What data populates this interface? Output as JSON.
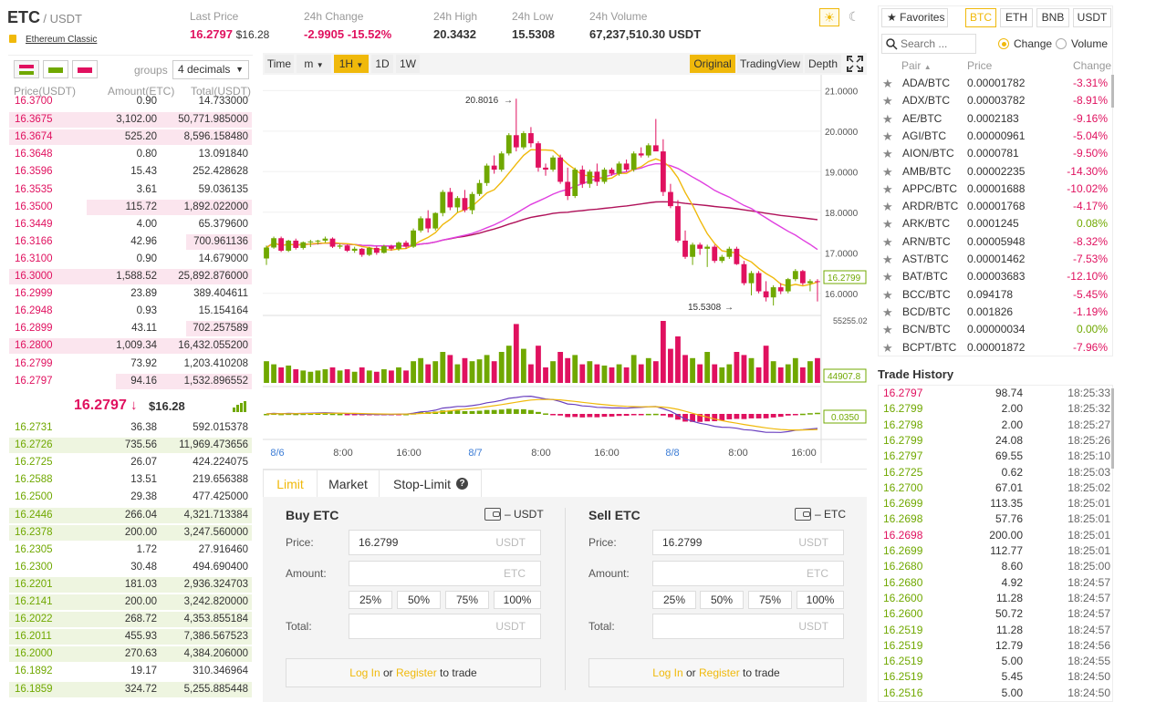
{
  "header": {
    "base": "ETC",
    "quote": "/ USDT",
    "name": "Ethereum Classic",
    "last_price_label": "Last Price",
    "last_price": "16.2797",
    "last_price_usd": "$16.28",
    "change_label": "24h Change",
    "change_abs": "-2.9905",
    "change_pct": "-15.52%",
    "high_label": "24h High",
    "high": "20.3432",
    "low_label": "24h Low",
    "low": "15.5308",
    "volume_label": "24h Volume",
    "volume": "67,237,510.30 USDT"
  },
  "orderbook": {
    "groups_label": "groups",
    "groups_value": "4 decimals",
    "col_price": "Price(USDT)",
    "col_amount": "Amount(ETC)",
    "col_total": "Total(USDT)",
    "asks": [
      {
        "p": "16.3700",
        "a": "0.90",
        "t": "14.733000",
        "depth": 0.0
      },
      {
        "p": "16.3675",
        "a": "3,102.00",
        "t": "50,771.985000",
        "depth": 1.0
      },
      {
        "p": "16.3674",
        "a": "525.20",
        "t": "8,596.158480",
        "depth": 1.0
      },
      {
        "p": "16.3648",
        "a": "0.80",
        "t": "13.091840",
        "depth": 0.0
      },
      {
        "p": "16.3596",
        "a": "15.43",
        "t": "252.428628",
        "depth": 0.0
      },
      {
        "p": "16.3535",
        "a": "3.61",
        "t": "59.036135",
        "depth": 0.0
      },
      {
        "p": "16.3500",
        "a": "115.72",
        "t": "1,892.022000",
        "depth": 0.68
      },
      {
        "p": "16.3449",
        "a": "4.00",
        "t": "65.379600",
        "depth": 0.0
      },
      {
        "p": "16.3166",
        "a": "42.96",
        "t": "700.961136",
        "depth": 0.27
      },
      {
        "p": "16.3100",
        "a": "0.90",
        "t": "14.679000",
        "depth": 0.0
      },
      {
        "p": "16.3000",
        "a": "1,588.52",
        "t": "25,892.876000",
        "depth": 1.0
      },
      {
        "p": "16.2999",
        "a": "23.89",
        "t": "389.404611",
        "depth": 0.0
      },
      {
        "p": "16.2948",
        "a": "0.93",
        "t": "15.154164",
        "depth": 0.0
      },
      {
        "p": "16.2899",
        "a": "43.11",
        "t": "702.257589",
        "depth": 0.27
      },
      {
        "p": "16.2800",
        "a": "1,009.34",
        "t": "16,432.055200",
        "depth": 1.0
      },
      {
        "p": "16.2799",
        "a": "73.92",
        "t": "1,203.410208",
        "depth": 0.0
      },
      {
        "p": "16.2797",
        "a": "94.16",
        "t": "1,532.896552",
        "depth": 0.56
      }
    ],
    "mid_price": "16.2797",
    "mid_arrow": "↓",
    "mid_usd": "$16.28",
    "bids": [
      {
        "p": "16.2731",
        "a": "36.38",
        "t": "592.015378",
        "depth": 0.0
      },
      {
        "p": "16.2726",
        "a": "735.56",
        "t": "11,969.473656",
        "depth": 1.0
      },
      {
        "p": "16.2725",
        "a": "26.07",
        "t": "424.224075",
        "depth": 0.0
      },
      {
        "p": "16.2588",
        "a": "13.51",
        "t": "219.656388",
        "depth": 0.0
      },
      {
        "p": "16.2500",
        "a": "29.38",
        "t": "477.425000",
        "depth": 0.0
      },
      {
        "p": "16.2446",
        "a": "266.04",
        "t": "4,321.713384",
        "depth": 1.0
      },
      {
        "p": "16.2378",
        "a": "200.00",
        "t": "3,247.560000",
        "depth": 1.0
      },
      {
        "p": "16.2305",
        "a": "1.72",
        "t": "27.916460",
        "depth": 0.0
      },
      {
        "p": "16.2300",
        "a": "30.48",
        "t": "494.690400",
        "depth": 0.0
      },
      {
        "p": "16.2201",
        "a": "181.03",
        "t": "2,936.324703",
        "depth": 1.0
      },
      {
        "p": "16.2141",
        "a": "200.00",
        "t": "3,242.820000",
        "depth": 1.0
      },
      {
        "p": "16.2022",
        "a": "268.72",
        "t": "4,353.855184",
        "depth": 1.0
      },
      {
        "p": "16.2011",
        "a": "455.93",
        "t": "7,386.567523",
        "depth": 1.0
      },
      {
        "p": "16.2000",
        "a": "270.63",
        "t": "4,384.206000",
        "depth": 1.0
      },
      {
        "p": "16.1892",
        "a": "19.17",
        "t": "310.346964",
        "depth": 0.0
      },
      {
        "p": "16.1859",
        "a": "324.72",
        "t": "5,255.885448",
        "depth": 1.0
      }
    ]
  },
  "chart": {
    "intervals": [
      "Time",
      "m",
      "1H",
      "1D",
      "1W"
    ],
    "active_interval": "1H",
    "views": [
      "Original",
      "TradingView",
      "Depth"
    ],
    "active_view": "Original",
    "price_ticks": [
      "21.0000",
      "20.0000",
      "19.0000",
      "18.0000",
      "17.0000",
      "16.0000"
    ],
    "current_price_tag": "16.2799",
    "high_marker": "20.8016",
    "low_marker": "15.5308",
    "vol_top": "55255.025",
    "vol_tag": "44907.8",
    "macd_tag": "0.0350",
    "time_labels": [
      {
        "t": "8/6",
        "blue": true
      },
      {
        "t": "8:00",
        "blue": false
      },
      {
        "t": "16:00",
        "blue": false
      },
      {
        "t": "8/7",
        "blue": true
      },
      {
        "t": "8:00",
        "blue": false
      },
      {
        "t": "16:00",
        "blue": false
      },
      {
        "t": "8/8",
        "blue": true
      },
      {
        "t": "8:00",
        "blue": false
      },
      {
        "t": "16:00",
        "blue": false
      }
    ],
    "colors": {
      "up": "#70a800",
      "down": "#e0115f",
      "ma_fast": "#f0b90b",
      "ma_mid": "#e040e0",
      "ma_slow": "#b0125a"
    }
  },
  "chart_data": {
    "type": "candlestick",
    "interval": "1H",
    "ylim": [
      15.5,
      21.3
    ],
    "candles": [
      [
        16.86,
        17.18,
        16.7,
        17.13
      ],
      [
        17.13,
        17.4,
        17.1,
        17.36
      ],
      [
        17.36,
        17.4,
        17.02,
        17.05
      ],
      [
        17.05,
        17.32,
        17.02,
        17.3
      ],
      [
        17.3,
        17.35,
        17.08,
        17.12
      ],
      [
        17.12,
        17.28,
        17.08,
        17.26
      ],
      [
        17.26,
        17.32,
        17.14,
        17.28
      ],
      [
        17.28,
        17.32,
        17.2,
        17.3
      ],
      [
        17.3,
        17.4,
        17.25,
        17.35
      ],
      [
        17.35,
        17.38,
        17.12,
        17.15
      ],
      [
        17.15,
        17.22,
        17.1,
        17.18
      ],
      [
        17.18,
        17.2,
        17.02,
        17.05
      ],
      [
        17.05,
        17.15,
        17.0,
        17.1
      ],
      [
        17.1,
        17.12,
        16.9,
        16.95
      ],
      [
        16.95,
        17.15,
        16.92,
        17.12
      ],
      [
        17.12,
        17.16,
        16.95,
        17.0
      ],
      [
        17.0,
        17.2,
        16.98,
        17.16
      ],
      [
        17.16,
        17.2,
        17.05,
        17.1
      ],
      [
        17.1,
        17.28,
        17.05,
        17.25
      ],
      [
        17.25,
        17.3,
        17.1,
        17.15
      ],
      [
        17.15,
        17.6,
        17.12,
        17.55
      ],
      [
        17.55,
        17.9,
        17.5,
        17.85
      ],
      [
        17.85,
        18.05,
        17.5,
        17.6
      ],
      [
        17.6,
        18.0,
        17.55,
        17.98
      ],
      [
        17.98,
        18.55,
        17.9,
        18.5
      ],
      [
        18.5,
        18.6,
        18.05,
        18.12
      ],
      [
        18.12,
        18.4,
        18.0,
        18.35
      ],
      [
        18.35,
        18.55,
        18.0,
        18.05
      ],
      [
        18.05,
        18.5,
        17.95,
        18.45
      ],
      [
        18.45,
        18.8,
        18.4,
        18.72
      ],
      [
        18.72,
        19.2,
        18.65,
        19.15
      ],
      [
        19.15,
        19.4,
        18.95,
        19.05
      ],
      [
        19.05,
        19.5,
        19.0,
        19.45
      ],
      [
        19.45,
        19.95,
        19.4,
        19.9
      ],
      [
        19.9,
        20.8,
        19.5,
        19.6
      ],
      [
        19.6,
        20.0,
        19.55,
        19.95
      ],
      [
        19.95,
        20.1,
        19.6,
        19.7
      ],
      [
        19.7,
        19.75,
        19.0,
        19.1
      ],
      [
        19.1,
        19.2,
        18.9,
        19.05
      ],
      [
        19.05,
        19.4,
        19.0,
        19.35
      ],
      [
        19.35,
        19.42,
        18.7,
        18.75
      ],
      [
        18.75,
        19.1,
        18.3,
        18.4
      ],
      [
        18.4,
        19.1,
        18.35,
        19.05
      ],
      [
        19.05,
        19.15,
        18.6,
        18.7
      ],
      [
        18.7,
        19.05,
        18.6,
        19.0
      ],
      [
        19.0,
        19.2,
        18.65,
        18.75
      ],
      [
        18.75,
        19.1,
        18.7,
        19.05
      ],
      [
        19.05,
        19.1,
        18.9,
        18.95
      ],
      [
        18.95,
        19.25,
        18.9,
        19.2
      ],
      [
        19.2,
        19.3,
        19.0,
        19.05
      ],
      [
        19.05,
        19.5,
        19.0,
        19.45
      ],
      [
        19.45,
        19.6,
        19.35,
        19.4
      ],
      [
        19.4,
        19.7,
        19.35,
        19.65
      ],
      [
        19.65,
        20.3,
        19.55,
        19.5
      ],
      [
        19.5,
        19.8,
        18.4,
        18.5
      ],
      [
        18.5,
        18.7,
        18.1,
        18.15
      ],
      [
        18.15,
        18.3,
        17.25,
        17.3
      ],
      [
        17.3,
        17.55,
        16.85,
        16.9
      ],
      [
        16.9,
        17.25,
        16.7,
        17.2
      ],
      [
        17.2,
        17.25,
        16.95,
        17.1
      ],
      [
        17.1,
        17.2,
        16.65,
        17.15
      ],
      [
        17.15,
        17.2,
        16.75,
        16.8
      ],
      [
        16.8,
        16.95,
        16.75,
        16.9
      ],
      [
        16.9,
        17.15,
        16.85,
        17.1
      ],
      [
        17.1,
        17.15,
        16.7,
        16.72
      ],
      [
        16.72,
        16.8,
        16.2,
        16.25
      ],
      [
        16.25,
        16.55,
        15.95,
        16.5
      ],
      [
        16.5,
        16.55,
        16.0,
        16.05
      ],
      [
        16.05,
        16.3,
        15.8,
        15.9
      ],
      [
        15.9,
        16.2,
        15.7,
        16.15
      ],
      [
        16.15,
        16.25,
        15.98,
        16.05
      ],
      [
        16.05,
        16.38,
        16.0,
        16.35
      ],
      [
        16.35,
        16.6,
        16.3,
        16.55
      ],
      [
        16.55,
        16.58,
        16.2,
        16.25
      ],
      [
        16.25,
        16.35,
        16.05,
        16.3
      ],
      [
        16.3,
        16.35,
        15.8,
        16.28
      ]
    ],
    "volumes": [
      0.35,
      0.3,
      0.25,
      0.28,
      0.22,
      0.2,
      0.18,
      0.2,
      0.22,
      0.25,
      0.2,
      0.22,
      0.18,
      0.25,
      0.2,
      0.18,
      0.22,
      0.2,
      0.25,
      0.2,
      0.35,
      0.4,
      0.3,
      0.35,
      0.5,
      0.45,
      0.3,
      0.4,
      0.35,
      0.38,
      0.45,
      0.35,
      0.5,
      0.6,
      0.95,
      0.55,
      0.3,
      0.6,
      0.25,
      0.35,
      0.5,
      0.4,
      0.45,
      0.3,
      0.35,
      0.3,
      0.28,
      0.25,
      0.3,
      0.25,
      0.45,
      0.3,
      0.4,
      0.35,
      1.0,
      0.55,
      0.75,
      0.45,
      0.4,
      0.3,
      0.5,
      0.3,
      0.25,
      0.3,
      0.5,
      0.45,
      0.4,
      0.25,
      0.6,
      0.35,
      0.25,
      0.3,
      0.4,
      0.25,
      0.35,
      0.4
    ]
  },
  "orderform": {
    "tabs": [
      "Limit",
      "Market",
      "Stop-Limit"
    ],
    "active_tab": "Limit",
    "buy": {
      "title": "Buy ETC",
      "wallet_unit": "– USDT",
      "price_label": "Price:",
      "price_value": "16.2799",
      "price_unit": "USDT",
      "amount_label": "Amount:",
      "amount_unit": "ETC",
      "total_label": "Total:",
      "total_unit": "USDT"
    },
    "sell": {
      "title": "Sell ETC",
      "wallet_unit": "– ETC",
      "price_label": "Price:",
      "price_value": "16.2799",
      "price_unit": "USDT",
      "amount_label": "Amount:",
      "amount_unit": "ETC",
      "total_label": "Total:",
      "total_unit": "USDT"
    },
    "percents": [
      "25%",
      "50%",
      "75%",
      "100%"
    ],
    "login": "Log In",
    "or": "or",
    "register": "Register",
    "to_trade": "to trade"
  },
  "markets": {
    "favorites_label": "Favorites",
    "quote_tabs": [
      "BTC",
      "ETH",
      "BNB",
      "USDT"
    ],
    "active_quote": "BTC",
    "search_placeholder": "Search ...",
    "toggle_change": "Change",
    "toggle_volume": "Volume",
    "col_pair": "Pair",
    "col_price": "Price",
    "col_change": "Change",
    "rows": [
      {
        "pair": "ADA/BTC",
        "price": "0.00001782",
        "change": "-3.31%",
        "up": false
      },
      {
        "pair": "ADX/BTC",
        "price": "0.00003782",
        "change": "-8.91%",
        "up": false
      },
      {
        "pair": "AE/BTC",
        "price": "0.0002183",
        "change": "-9.16%",
        "up": false
      },
      {
        "pair": "AGI/BTC",
        "price": "0.00000961",
        "change": "-5.04%",
        "up": false
      },
      {
        "pair": "AION/BTC",
        "price": "0.0000781",
        "change": "-9.50%",
        "up": false
      },
      {
        "pair": "AMB/BTC",
        "price": "0.00002235",
        "change": "-14.30%",
        "up": false
      },
      {
        "pair": "APPC/BTC",
        "price": "0.00001688",
        "change": "-10.02%",
        "up": false
      },
      {
        "pair": "ARDR/BTC",
        "price": "0.00001768",
        "change": "-4.17%",
        "up": false
      },
      {
        "pair": "ARK/BTC",
        "price": "0.0001245",
        "change": "0.08%",
        "up": true
      },
      {
        "pair": "ARN/BTC",
        "price": "0.00005948",
        "change": "-8.32%",
        "up": false
      },
      {
        "pair": "AST/BTC",
        "price": "0.00001462",
        "change": "-7.53%",
        "up": false
      },
      {
        "pair": "BAT/BTC",
        "price": "0.00003683",
        "change": "-12.10%",
        "up": false
      },
      {
        "pair": "BCC/BTC",
        "price": "0.094178",
        "change": "-5.45%",
        "up": false
      },
      {
        "pair": "BCD/BTC",
        "price": "0.001826",
        "change": "-1.19%",
        "up": false
      },
      {
        "pair": "BCN/BTC",
        "price": "0.00000034",
        "change": "0.00%",
        "up": true
      },
      {
        "pair": "BCPT/BTC",
        "price": "0.00001872",
        "change": "-7.96%",
        "up": false
      }
    ]
  },
  "trade_history": {
    "title": "Trade History",
    "rows": [
      {
        "p": "16.2797",
        "a": "98.74",
        "t": "18:25:33",
        "up": false
      },
      {
        "p": "16.2799",
        "a": "2.00",
        "t": "18:25:32",
        "up": true
      },
      {
        "p": "16.2798",
        "a": "2.00",
        "t": "18:25:27",
        "up": true
      },
      {
        "p": "16.2799",
        "a": "24.08",
        "t": "18:25:26",
        "up": true
      },
      {
        "p": "16.2797",
        "a": "69.55",
        "t": "18:25:10",
        "up": true
      },
      {
        "p": "16.2725",
        "a": "0.62",
        "t": "18:25:03",
        "up": true
      },
      {
        "p": "16.2700",
        "a": "67.01",
        "t": "18:25:02",
        "up": true
      },
      {
        "p": "16.2699",
        "a": "113.35",
        "t": "18:25:01",
        "up": true
      },
      {
        "p": "16.2698",
        "a": "57.76",
        "t": "18:25:01",
        "up": true
      },
      {
        "p": "16.2698",
        "a": "200.00",
        "t": "18:25:01",
        "up": false
      },
      {
        "p": "16.2699",
        "a": "112.77",
        "t": "18:25:01",
        "up": true
      },
      {
        "p": "16.2680",
        "a": "8.60",
        "t": "18:25:00",
        "up": true
      },
      {
        "p": "16.2680",
        "a": "4.92",
        "t": "18:24:57",
        "up": true
      },
      {
        "p": "16.2600",
        "a": "11.28",
        "t": "18:24:57",
        "up": true
      },
      {
        "p": "16.2600",
        "a": "50.72",
        "t": "18:24:57",
        "up": true
      },
      {
        "p": "16.2519",
        "a": "11.28",
        "t": "18:24:57",
        "up": true
      },
      {
        "p": "16.2519",
        "a": "12.79",
        "t": "18:24:56",
        "up": true
      },
      {
        "p": "16.2519",
        "a": "5.00",
        "t": "18:24:55",
        "up": true
      },
      {
        "p": "16.2519",
        "a": "5.45",
        "t": "18:24:50",
        "up": true
      },
      {
        "p": "16.2516",
        "a": "5.00",
        "t": "18:24:50",
        "up": true
      }
    ]
  }
}
